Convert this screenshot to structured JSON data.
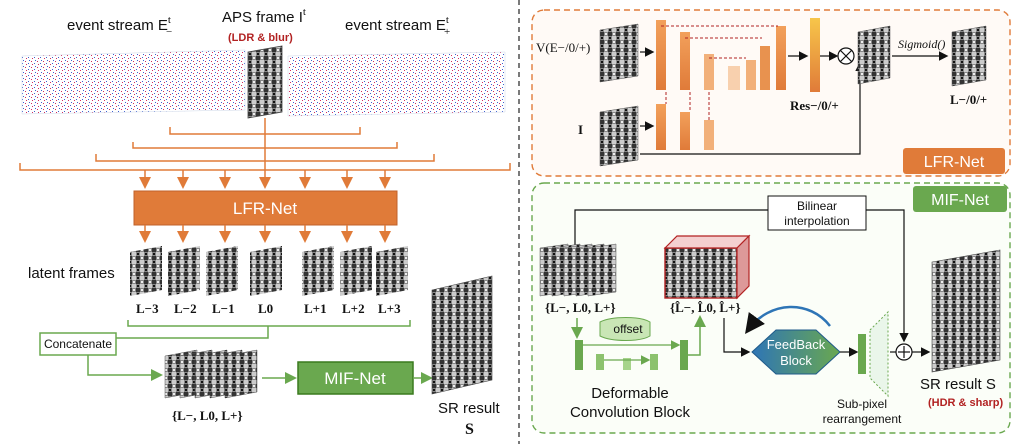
{
  "left": {
    "event_stream_minus_label": "event stream E",
    "event_stream_minus_sup": "t",
    "event_stream_minus_sub": "−",
    "aps_frame_label": "APS frame I",
    "aps_frame_sup": "t",
    "aps_note": "(LDR & blur)",
    "event_stream_plus_label": "event stream E",
    "event_stream_plus_sup": "t",
    "event_stream_plus_sub": "+",
    "lfr_net_label": "LFR-Net",
    "latent_frames_label": "latent frames",
    "latent_frame_labels": [
      "L−3",
      "L−2",
      "L−1",
      "L0",
      "L+1",
      "L+2",
      "L+3"
    ],
    "concatenate_label": "Concatenate",
    "set_label": "{L−, L0, L+}",
    "mif_net_label": "MIF-Net",
    "sr_result_label": "SR result",
    "sr_symbol": "S"
  },
  "right_top": {
    "input_label": "V(E−/0/+)",
    "i_label": "I",
    "res_label": "Res−/0/+",
    "sigmoid_label": "Sigmoid()",
    "output_label": "L−/0/+",
    "panel_tag": "LFR-Net"
  },
  "right_bottom": {
    "panel_tag": "MIF-Net",
    "bilinear_label_1": "Bilinear",
    "bilinear_label_2": "interpolation",
    "set_in_label": "{L−, L0, L+}",
    "set_hat_label": "{L̂−, L̂0, L̂+}",
    "offset_label": "offset",
    "deform_label_1": "Deformable",
    "deform_label_2": "Convolution Block",
    "feedback_label_1": "FeedBack",
    "feedback_label_2": "Block",
    "subpixel_label_1": "Sub-pixel",
    "subpixel_label_2": "rearrangement",
    "sr_result_label": "SR result S",
    "sr_note": "(HDR & sharp)"
  },
  "colors": {
    "orange": "#e07b39",
    "green": "#6aa84f",
    "green_dark": "#3a7a1e",
    "blue": "#2e75b6",
    "red_dark": "#b22222"
  }
}
